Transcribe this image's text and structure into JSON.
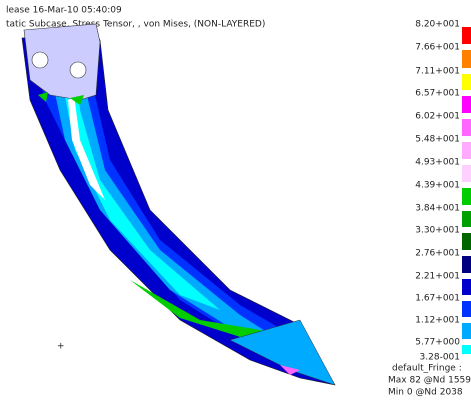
{
  "header": {
    "line1": "lease 16-Mar-10 05:40:09",
    "line2": "tatic Subcase, Stress Tensor, , von Mises, (NON-LAYERED)"
  },
  "legend": {
    "labels": [
      "8.20+001",
      "7.66+001",
      "7.11+001",
      "6.57+001",
      "6.02+001",
      "5.48+001",
      "4.93+001",
      "4.39+001",
      "3.84+001",
      "3.30+001",
      "2.76+001",
      "2.21+001",
      "1.67+001",
      "1.12+001",
      "5.77+000",
      "3.28-001"
    ],
    "colors": [
      "#ff0000",
      "#ff7f00",
      "#ffff00",
      "#ff00ff",
      "#ff66ff",
      "#ffaaff",
      "#ffd0ff",
      "#00cc00",
      "#00a000",
      "#006600",
      "#000080",
      "#0000cc",
      "#0033ff",
      "#00aaff",
      "#00ffff"
    ]
  },
  "footer": {
    "line1": "default_Fringe :",
    "line2": "Max 82 @Nd 1559",
    "line3": "Min 0 @Nd 2038"
  },
  "marker": "+"
}
